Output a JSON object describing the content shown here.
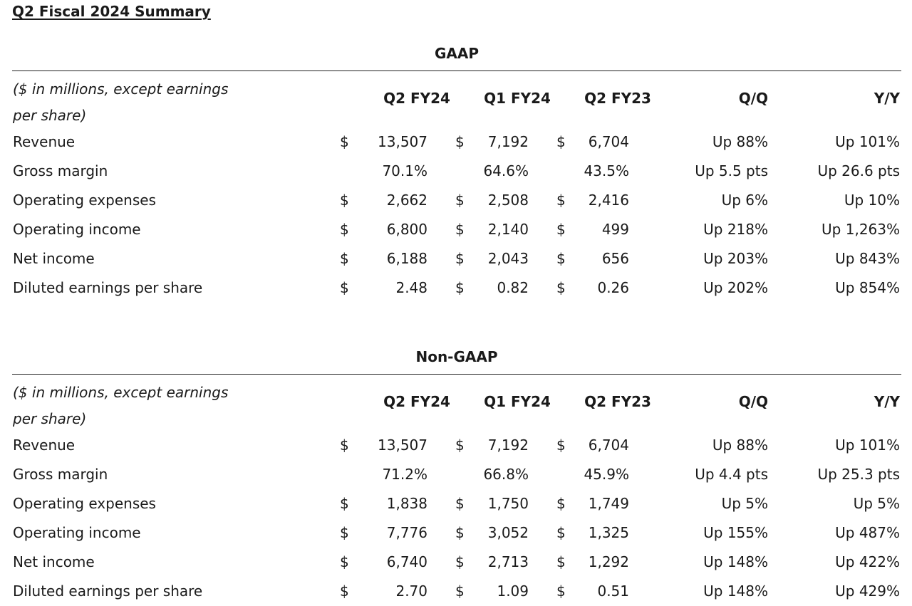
{
  "title": "Q2 Fiscal 2024 Summary",
  "sections": [
    {
      "name": "GAAP",
      "units_line1": "($ in millions, except earnings",
      "units_line2": "per share)",
      "columns": [
        "Q2 FY24",
        "Q1 FY24",
        "Q2 FY23",
        "Q/Q",
        "Y/Y"
      ],
      "rows": [
        {
          "label": "Revenue",
          "dollar": "$",
          "q2fy24": "13,507",
          "q1fy24": "7,192",
          "q2fy23": "6,704",
          "qq": "Up 88%",
          "yy": "Up 101%"
        },
        {
          "label": "Gross margin",
          "dollar": "",
          "q2fy24": "70.1%",
          "q1fy24": "64.6%",
          "q2fy23": "43.5%",
          "qq": "Up 5.5 pts",
          "yy": "Up 26.6 pts"
        },
        {
          "label": "Operating expenses",
          "dollar": "$",
          "q2fy24": "2,662",
          "q1fy24": "2,508",
          "q2fy23": "2,416",
          "qq": "Up 6%",
          "yy": "Up 10%"
        },
        {
          "label": "Operating income",
          "dollar": "$",
          "q2fy24": "6,800",
          "q1fy24": "2,140",
          "q2fy23": "499",
          "qq": "Up 218%",
          "yy": "Up 1,263%"
        },
        {
          "label": "Net income",
          "dollar": "$",
          "q2fy24": "6,188",
          "q1fy24": "2,043",
          "q2fy23": "656",
          "qq": "Up 203%",
          "yy": "Up 843%"
        },
        {
          "label": "Diluted earnings per share",
          "dollar": "$",
          "q2fy24": "2.48",
          "q1fy24": "0.82",
          "q2fy23": "0.26",
          "qq": "Up 202%",
          "yy": "Up 854%"
        }
      ]
    },
    {
      "name": "Non-GAAP",
      "units_line1": "($ in millions, except earnings",
      "units_line2": "per share)",
      "columns": [
        "Q2 FY24",
        "Q1 FY24",
        "Q2 FY23",
        "Q/Q",
        "Y/Y"
      ],
      "rows": [
        {
          "label": "Revenue",
          "dollar": "$",
          "q2fy24": "13,507",
          "q1fy24": "7,192",
          "q2fy23": "6,704",
          "qq": "Up 88%",
          "yy": "Up 101%"
        },
        {
          "label": "Gross margin",
          "dollar": "",
          "q2fy24": "71.2%",
          "q1fy24": "66.8%",
          "q2fy23": "45.9%",
          "qq": "Up 4.4 pts",
          "yy": "Up 25.3 pts"
        },
        {
          "label": "Operating expenses",
          "dollar": "$",
          "q2fy24": "1,838",
          "q1fy24": "1,750",
          "q2fy23": "1,749",
          "qq": "Up 5%",
          "yy": "Up 5%"
        },
        {
          "label": "Operating income",
          "dollar": "$",
          "q2fy24": "7,776",
          "q1fy24": "3,052",
          "q2fy23": "1,325",
          "qq": "Up 155%",
          "yy": "Up 487%"
        },
        {
          "label": "Net income",
          "dollar": "$",
          "q2fy24": "6,740",
          "q1fy24": "2,713",
          "q2fy23": "1,292",
          "qq": "Up 148%",
          "yy": "Up 422%"
        },
        {
          "label": "Diluted earnings per share",
          "dollar": "$",
          "q2fy24": "2.70",
          "q1fy24": "1.09",
          "q2fy23": "0.51",
          "qq": "Up 148%",
          "yy": "Up 429%"
        }
      ]
    }
  ]
}
